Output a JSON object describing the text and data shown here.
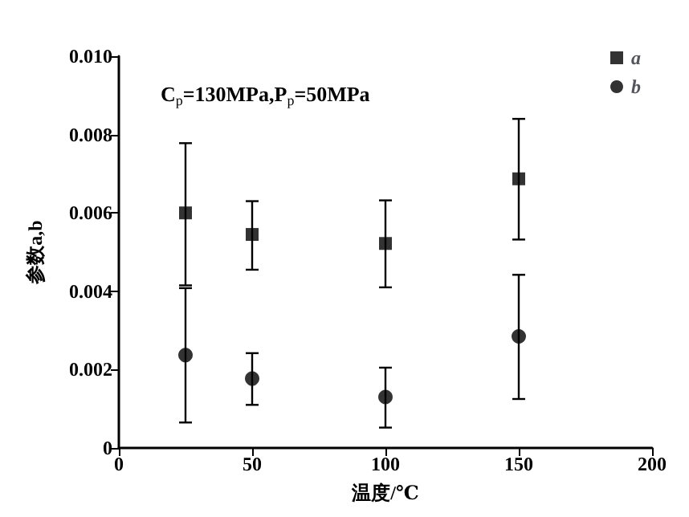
{
  "chart_data": {
    "type": "scatter",
    "xlabel": "温度/℃",
    "ylabel": "参数a,b",
    "annotations": [
      "C$_{p}$=130MPa,P$_{p}$=50MPa"
    ],
    "x": [
      25,
      50,
      100,
      150
    ],
    "series": [
      {
        "name": "a",
        "color": "#000000",
        "marker": "square",
        "values": [
          0.006,
          0.00545,
          0.00522,
          0.00687
        ],
        "errors": [
          [
            0.00415,
            0.00778
          ],
          [
            0.00455,
            0.0063
          ],
          [
            0.0041,
            0.00632
          ],
          [
            0.00532,
            0.0084
          ]
        ]
      },
      {
        "name": "b",
        "color": "#000000",
        "marker": "circle",
        "values": [
          0.00237,
          0.00177,
          0.0013,
          0.00285
        ],
        "errors": [
          [
            0.00065,
            0.00408
          ],
          [
            0.0011,
            0.00242
          ],
          [
            0.00052,
            0.00205
          ],
          [
            0.00125,
            0.00442
          ]
        ]
      }
    ],
    "xlim": [
      0,
      200
    ],
    "xticks": [
      0,
      50,
      100,
      150,
      200
    ],
    "ylim": [
      0,
      0.01
    ],
    "yticks": [
      0,
      0.002,
      0.004,
      0.006,
      0.008,
      {
        "value": 0.01,
        "label": "0.010"
      }
    ],
    "grid": false,
    "legend": "top right"
  }
}
